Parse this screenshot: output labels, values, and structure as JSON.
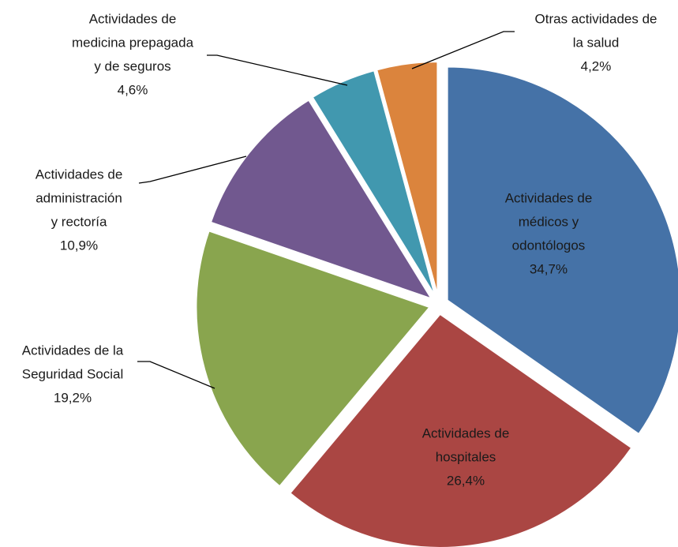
{
  "chart_data": {
    "type": "pie",
    "categories": [
      [
        "Actividades de",
        "médicos y",
        "odontólogos"
      ],
      [
        "Actividades de",
        "hospitales"
      ],
      [
        "Actividades de la",
        "Seguridad Social"
      ],
      [
        "Actividades de",
        "administración",
        "y rectoría"
      ],
      [
        "Actividades de",
        "medicina prepagada",
        "y de seguros"
      ],
      [
        "Otras actividades de",
        "la salud"
      ]
    ],
    "values": [
      34.7,
      26.4,
      19.2,
      10.9,
      4.6,
      4.2
    ],
    "value_labels": [
      "34,7%",
      "26,4%",
      "19,2%",
      "10,9%",
      "4,6%",
      "4,2%"
    ],
    "colors": [
      "#4572a7",
      "#aa4643",
      "#89a54e",
      "#71588f",
      "#4198af",
      "#db843d"
    ]
  }
}
